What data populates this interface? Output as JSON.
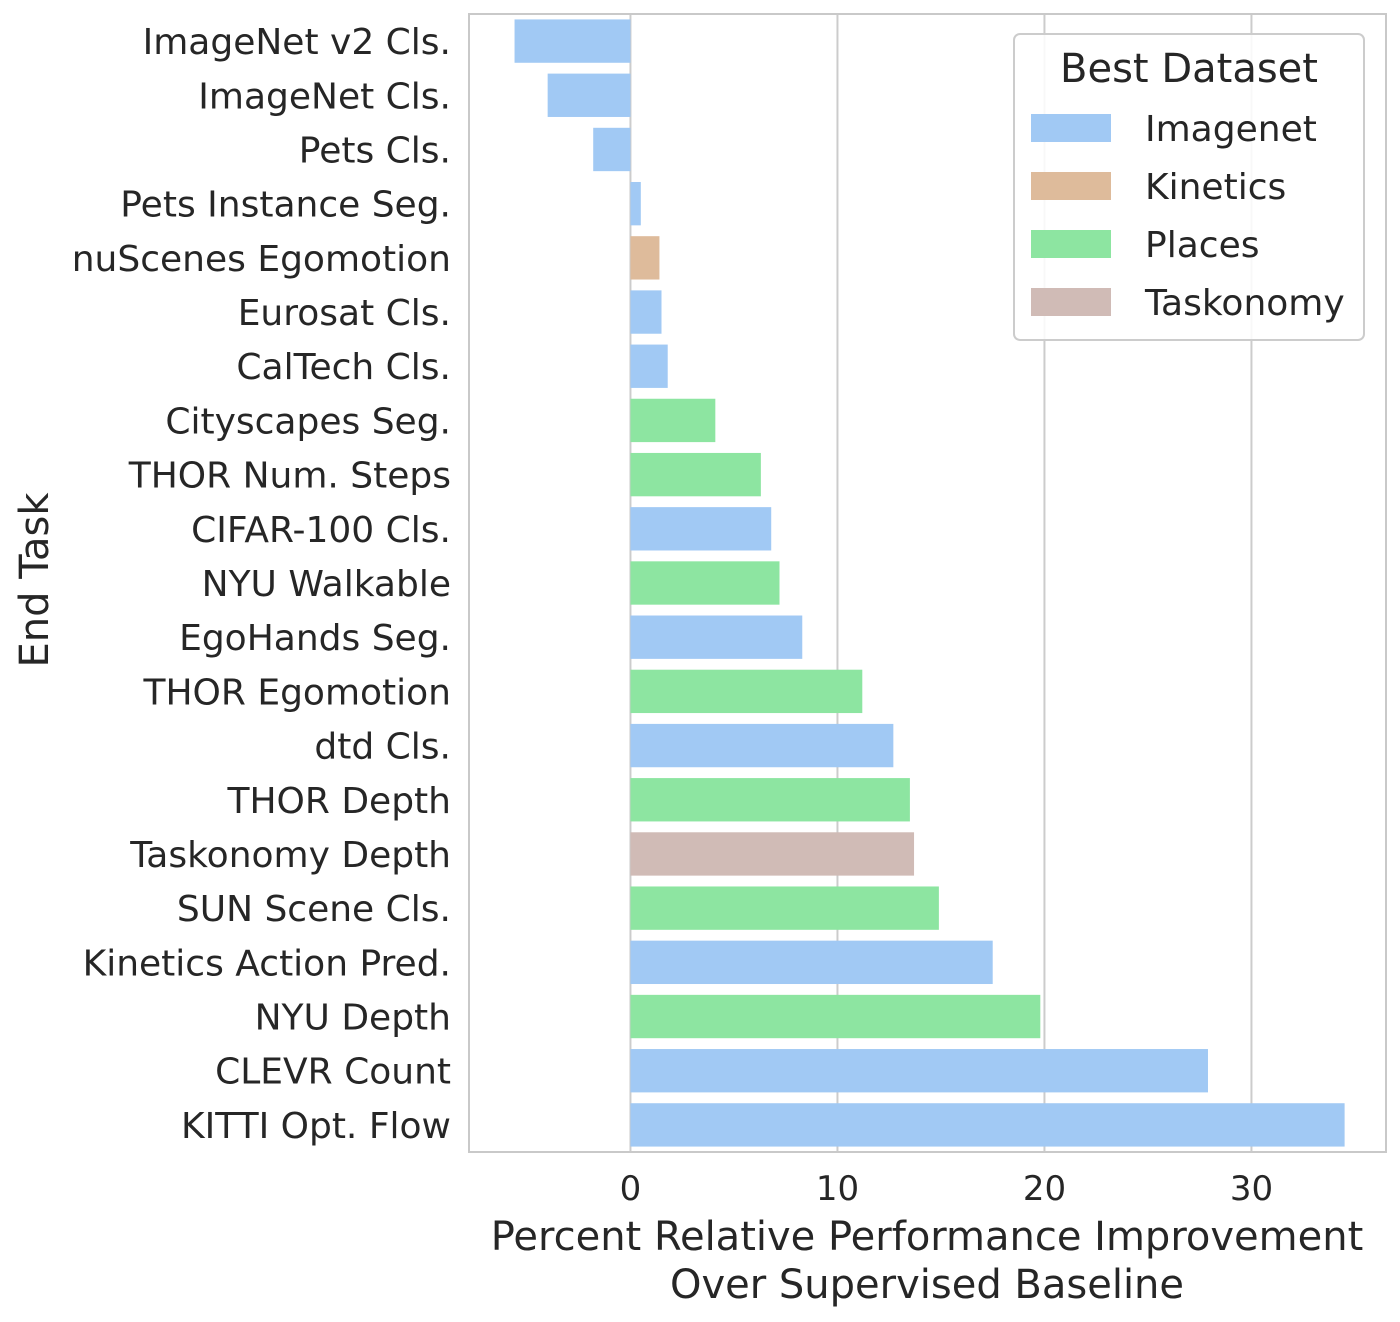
{
  "chart_data": {
    "type": "bar",
    "orientation": "horizontal",
    "xlabel": [
      "Percent Relative Performance Improvement",
      "Over Supervised Baseline"
    ],
    "ylabel": "End Task",
    "xlim": [
      -7.8,
      36.5
    ],
    "xticks": [
      0,
      10,
      20,
      30
    ],
    "grid": "vertical",
    "legend": {
      "title": "Best Dataset",
      "placement": "top-right",
      "entries": [
        {
          "name": "Imagenet",
          "color": "#a1c9f4"
        },
        {
          "name": "Kinetics",
          "color": "#debb9b"
        },
        {
          "name": "Places",
          "color": "#8de5a1"
        },
        {
          "name": "Taskonomy",
          "color": "#d0bbb6"
        }
      ]
    },
    "categories": [
      "ImageNet v2 Cls.",
      "ImageNet Cls.",
      "Pets Cls.",
      "Pets Instance Seg.",
      "nuScenes Egomotion",
      "Eurosat Cls.",
      "CalTech Cls.",
      "Cityscapes Seg.",
      "THOR Num. Steps",
      "CIFAR-100 Cls.",
      "NYU Walkable",
      "EgoHands Seg.",
      "THOR Egomotion",
      "dtd Cls.",
      "THOR Depth",
      "Taskonomy Depth",
      "SUN Scene Cls.",
      "Kinetics Action Pred.",
      "NYU Depth",
      "CLEVR Count",
      "KITTI Opt. Flow"
    ],
    "values": [
      -5.6,
      -4.0,
      -1.8,
      0.5,
      1.4,
      1.5,
      1.8,
      4.1,
      6.3,
      6.8,
      7.2,
      8.3,
      11.2,
      12.7,
      13.5,
      13.7,
      14.9,
      17.5,
      19.8,
      27.9,
      34.5
    ],
    "best_dataset": [
      "Imagenet",
      "Imagenet",
      "Imagenet",
      "Imagenet",
      "Kinetics",
      "Imagenet",
      "Imagenet",
      "Places",
      "Places",
      "Imagenet",
      "Places",
      "Imagenet",
      "Places",
      "Imagenet",
      "Places",
      "Taskonomy",
      "Places",
      "Imagenet",
      "Places",
      "Imagenet",
      "Imagenet"
    ]
  }
}
